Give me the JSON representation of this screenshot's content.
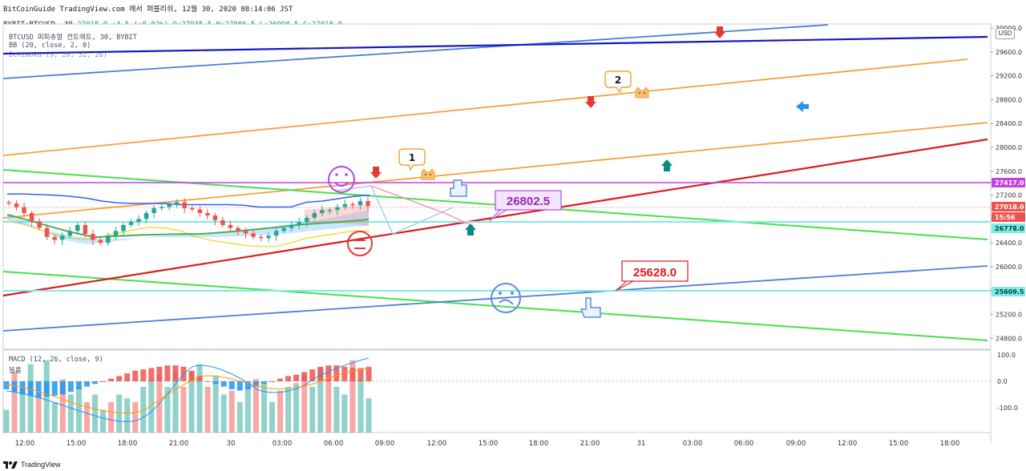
{
  "header": {
    "line1": "BitCoinGuide TradingView.com 에서 퍼블리쉬, 12월 30, 2020 08:14:06 JST",
    "symbol": "BYBIT:BTCUSD, 30",
    "last": "27018.0",
    "change": "+4.5 (+0.02%)",
    "o": "O:27035.5",
    "h": "H:27086.5",
    "l": "L:26998.5",
    "c": "C:27018.0"
  },
  "legend": {
    "title": "BTCUSD 퍼피츄얼 컨트랙트, 30, BYBIT",
    "bb": "BB (20, close, 2, 0)",
    "ichimoku": "Ichimoku (9, 26, 52, 26)",
    "macd": "MACD (12, 26, close, 9)",
    "macd_sub": "볼륨"
  },
  "currency_button": "USD",
  "branding": "TradingView",
  "colors": {
    "up": "#26a69a",
    "down": "#ef5350",
    "bb": "#2962ff",
    "trend_red": "#e0191c",
    "trend_orange": "#f7a23a",
    "trend_green": "#44e24a",
    "trend_blue": "#4a7fd6",
    "trend_navy": "#1616c8",
    "level_purple": "#c43fe8",
    "level_cyan": "#7aece8"
  },
  "chart_data": [
    {
      "type": "line",
      "title": "BTCUSD 퍼피츄얼 컨트랙트, 30, BYBIT",
      "y_axis": {
        "ticks": [
          "30000.0",
          "29600.0",
          "29200.0",
          "28800.0",
          "28400.0",
          "28000.0",
          "27600.0",
          "27200.0",
          "26800.0",
          "26400.0",
          "26000.0",
          "25600.0",
          "25200.0",
          "24800.0"
        ],
        "ylim": [
          24700,
          30050
        ]
      },
      "x_axis": {
        "ticks": [
          "12:00",
          "15:00",
          "18:00",
          "21:00",
          "30",
          "03:00",
          "06:00",
          "09:00",
          "12:00",
          "15:00",
          "18:00",
          "21:00",
          "31",
          "03:00",
          "06:00",
          "09:00",
          "12:00",
          "15:00",
          "18:00"
        ]
      },
      "price_labels": [
        {
          "value": 27417.0,
          "label": "27417.0",
          "color": "#c43fe8"
        },
        {
          "value": 27018.0,
          "label": "27018.0",
          "color": "#ef5350"
        },
        {
          "value": 26865.0,
          "label": "15:56",
          "color": "#ef5350"
        },
        {
          "value": 26778.0,
          "label": "26778.0",
          "color": "#7aece8"
        },
        {
          "value": 25609.5,
          "label": "25609.5",
          "color": "#7aece8"
        }
      ],
      "annotations": [
        {
          "text": "26802.5",
          "color": "#9c27b0"
        },
        {
          "text": "25628.0",
          "color": "#e0191c"
        },
        {
          "text": "1",
          "color": "#f7a23a"
        },
        {
          "text": "2",
          "color": "#f7a23a"
        }
      ],
      "candles_close_approx": [
        27060,
        27000,
        26900,
        26760,
        26650,
        26500,
        26450,
        26520,
        26600,
        26700,
        26550,
        26450,
        26400,
        26520,
        26600,
        26700,
        26750,
        26800,
        26900,
        26980,
        27000,
        27050,
        27080,
        26980,
        26960,
        26900,
        26860,
        26780,
        26700,
        26650,
        26600,
        26560,
        26500,
        26480,
        26520,
        26600,
        26650,
        26700,
        26750,
        26820,
        26900,
        26950,
        26950,
        27000,
        27050,
        27030,
        27100,
        27018
      ],
      "series": [
        {
          "name": "Upper BB",
          "values": [
            27220,
            27220,
            27210,
            27200,
            27180,
            27150,
            27100,
            27070,
            27060,
            27060,
            27060,
            27040,
            27040,
            27040,
            27040,
            27030,
            27000,
            27000,
            27000,
            27080,
            27100,
            27140,
            27180,
            27200
          ]
        },
        {
          "name": "Lower BB",
          "values": [
            26760,
            26720,
            26620,
            26540,
            26480,
            26460,
            26500,
            26560,
            26620,
            26660,
            26650,
            26600,
            26500,
            26440,
            26400,
            26360,
            26340,
            26340,
            26400,
            26480,
            26520,
            26560,
            26600,
            26600
          ]
        }
      ]
    },
    {
      "type": "bar",
      "title": "MACD (12, 26, close, 9)",
      "ylim": [
        -160,
        100
      ],
      "y_ticks": [
        "100.0",
        "0.0",
        "-100.0"
      ],
      "histogram_approx": [
        -30,
        -40,
        -50,
        -55,
        -60,
        -58,
        -55,
        -50,
        -40,
        -30,
        -20,
        -10,
        0,
        10,
        20,
        30,
        40,
        45,
        50,
        55,
        60,
        60,
        55,
        40,
        20,
        0,
        -10,
        -20,
        -30,
        -35,
        -30,
        -20,
        -10,
        0,
        10,
        20,
        25,
        35,
        45,
        55,
        60,
        60,
        55,
        50,
        50,
        55
      ],
      "volume_approx": [
        30,
        80,
        60,
        90,
        50,
        95,
        40,
        70,
        50,
        60,
        40,
        50,
        30,
        40,
        50,
        45,
        40,
        60,
        70,
        75,
        60,
        80,
        60,
        80,
        90,
        60,
        75,
        50,
        55,
        40,
        60,
        70,
        65,
        40,
        55,
        60,
        65,
        75,
        60,
        85,
        70,
        60,
        50,
        95,
        70,
        45
      ]
    }
  ]
}
